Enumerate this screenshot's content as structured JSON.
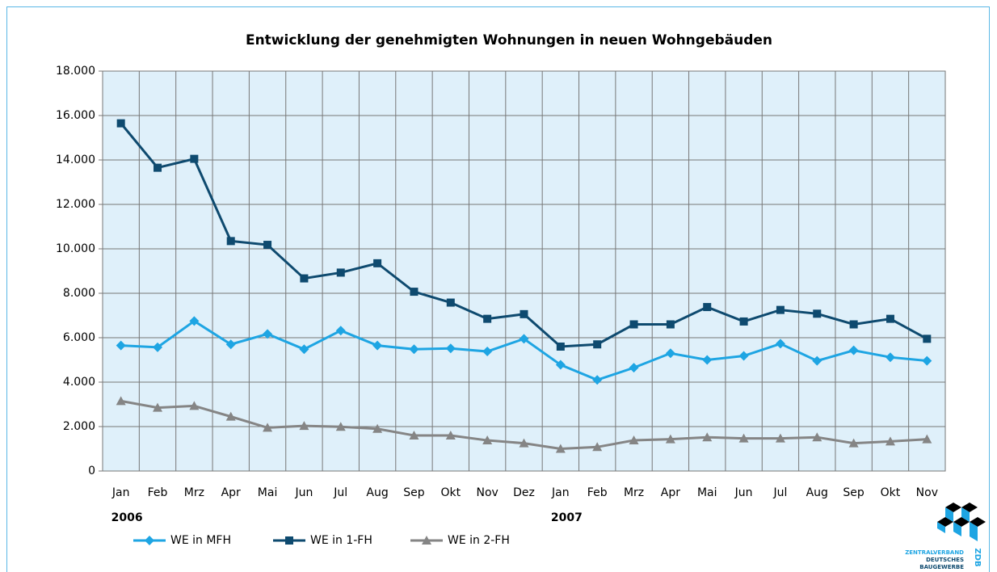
{
  "chart_data": {
    "type": "line",
    "title": "Entwicklung der genehmigten Wohnungen in neuen Wohngebäuden",
    "categories": [
      "Jan",
      "Feb",
      "Mrz",
      "Apr",
      "Mai",
      "Jun",
      "Jul",
      "Aug",
      "Sep",
      "Okt",
      "Nov",
      "Dez",
      "Jan",
      "Feb",
      "Mrz",
      "Apr",
      "Mai",
      "Jun",
      "Jul",
      "Aug",
      "Sep",
      "Okt",
      "Nov"
    ],
    "category_groups": [
      {
        "label": "2006",
        "start": 0
      },
      {
        "label": "2007",
        "start": 12
      }
    ],
    "series": [
      {
        "name": "WE in MFH",
        "color": "#1ea5e3",
        "marker": "diamond",
        "values": [
          5650,
          5570,
          6750,
          5700,
          6170,
          5480,
          6320,
          5650,
          5480,
          5520,
          5380,
          5950,
          4780,
          4100,
          4650,
          5300,
          5000,
          5180,
          5730,
          4960,
          5430,
          5120,
          4960
        ]
      },
      {
        "name": "WE in 1-FH",
        "color": "#0e4a6f",
        "marker": "square",
        "values": [
          15650,
          13650,
          14050,
          10350,
          10180,
          8670,
          8930,
          9350,
          8070,
          7580,
          6850,
          7060,
          5600,
          5700,
          6600,
          6600,
          7380,
          6730,
          7250,
          7080,
          6600,
          6850,
          5950
        ]
      },
      {
        "name": "WE in 2-FH",
        "color": "#858585",
        "marker": "triangle",
        "values": [
          3150,
          2850,
          2930,
          2450,
          1950,
          2030,
          1990,
          1900,
          1600,
          1600,
          1380,
          1250,
          1000,
          1080,
          1380,
          1430,
          1520,
          1470,
          1470,
          1520,
          1250,
          1330,
          1430
        ]
      }
    ],
    "ylim": [
      0,
      18000
    ],
    "yticks": [
      0,
      {
        "value": 2000,
        "label": "2.000"
      },
      {
        "value": 4000,
        "label": "4.000"
      },
      {
        "value": 6000,
        "label": "6.000"
      },
      {
        "value": 8000,
        "label": "8.000"
      },
      {
        "value": 10000,
        "label": "10.000"
      },
      {
        "value": 12000,
        "label": "12.000"
      },
      {
        "value": 14000,
        "label": "14.000"
      },
      {
        "value": 16000,
        "label": "16.000"
      },
      {
        "value": 18000,
        "label": "18.000"
      }
    ],
    "grid": true,
    "legend": "bottom-left",
    "plot_background": "#dff0fa"
  },
  "logo": {
    "name": "ZENTRALVERBAND",
    "line2": "DEUTSCHES",
    "line3": "BAUGEWERBE",
    "short": "ZDB"
  }
}
